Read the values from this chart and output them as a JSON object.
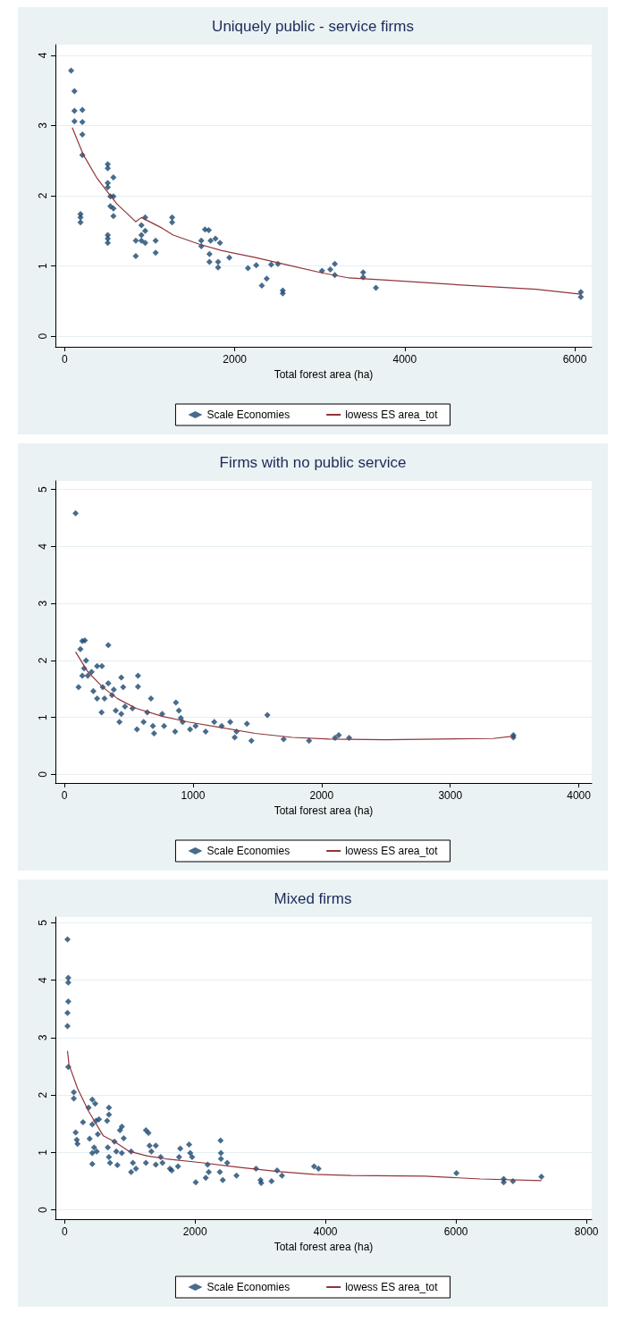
{
  "chart_data": [
    {
      "type": "scatter",
      "title": "Uniquely public - service firms",
      "xlabel": "Total forest area (ha)",
      "xlim": [
        -110,
        6200
      ],
      "ylim": [
        -0.15,
        4.15
      ],
      "xticks": [
        0,
        2000,
        4000,
        6000
      ],
      "yticks": [
        0,
        1,
        2,
        3,
        4
      ],
      "grid": "y",
      "legend": "bottom",
      "series": [
        {
          "name": "Scale Economies",
          "marker": "diamond",
          "color": "#1a476f",
          "x": [
            75,
            114,
            114,
            114,
            207,
            207,
            207,
            207,
            185,
            185,
            185,
            506,
            506,
            506,
            506,
            572,
            537,
            537,
            572,
            572,
            572,
            506,
            506,
            506,
            836,
            836,
            902,
            902,
            902,
            946,
            946,
            946,
            1069,
            1069,
            1263,
            1263,
            1606,
            1606,
            1650,
            1694,
            1716,
            1703,
            1703,
            1773,
            1804,
            1804,
            1826,
            1936,
            2156,
            2253,
            2319,
            2376,
            2429,
            2508,
            2565,
            2565,
            3027,
            3124,
            3177,
            3177,
            3511,
            3511,
            3661,
            6072,
            6072
          ],
          "values": [
            3.78,
            3.49,
            3.21,
            3.06,
            3.22,
            3.05,
            2.87,
            2.58,
            1.74,
            1.69,
            1.62,
            2.45,
            2.39,
            2.18,
            2.12,
            2.26,
            1.99,
            1.85,
            1.99,
            1.82,
            1.71,
            1.44,
            1.39,
            1.33,
            1.36,
            1.14,
            1.58,
            1.44,
            1.36,
            1.69,
            1.5,
            1.33,
            1.36,
            1.19,
            1.69,
            1.62,
            1.36,
            1.28,
            1.52,
            1.51,
            1.36,
            1.17,
            1.06,
            1.39,
            0.98,
            1.06,
            1.33,
            1.12,
            0.97,
            1.01,
            0.72,
            0.82,
            1.02,
            1.03,
            0.65,
            0.61,
            0.93,
            0.95,
            1.03,
            0.87,
            0.91,
            0.84,
            0.69,
            0.63,
            0.56
          ]
        },
        {
          "name": "lowess ES area_tot",
          "type": "line",
          "marker": "none",
          "color": "#90353b",
          "x": [
            88,
            220,
            374,
            506,
            616,
            836,
            902,
            1144,
            1276,
            1584,
            1848,
            2244,
            2640,
            3036,
            3344,
            3784,
            4664,
            5544,
            6072
          ],
          "values": [
            2.97,
            2.58,
            2.26,
            2.05,
            1.88,
            1.63,
            1.69,
            1.54,
            1.44,
            1.31,
            1.22,
            1.12,
            1.01,
            0.9,
            0.83,
            0.8,
            0.73,
            0.67,
            0.6
          ]
        }
      ]
    },
    {
      "type": "scatter",
      "title": "Firms with no public service",
      "xlabel": "Total forest area (ha)",
      "xlim": [
        -70,
        4100
      ],
      "ylim": [
        -0.15,
        5.15
      ],
      "xticks": [
        0,
        1000,
        2000,
        3000,
        4000
      ],
      "yticks": [
        0,
        1,
        2,
        3,
        4,
        5
      ],
      "grid": "y",
      "legend": "bottom",
      "series": [
        {
          "name": "Scale Economies",
          "marker": "diamond",
          "color": "#1a476f",
          "x": [
            87,
            139,
            124,
            159,
            110,
            139,
            153,
            168,
            182,
            211,
            254,
            292,
            225,
            254,
            298,
            312,
            341,
            341,
            370,
            384,
            289,
            399,
            442,
            457,
            428,
            442,
            471,
            529,
            572,
            572,
            564,
            616,
            644,
            673,
            688,
            697,
            760,
            775,
            861,
            867,
            890,
            905,
            919,
            977,
            1020,
            1098,
            1165,
            1223,
            1289,
            1324,
            1338,
            1419,
            1454,
            1578,
            1705,
            1902,
            2104,
            2133,
            2214,
            3491,
            3491
          ],
          "values": [
            4.58,
            2.34,
            2.2,
            2.35,
            1.53,
            1.73,
            1.86,
            2.0,
            1.73,
            1.8,
            1.9,
            1.9,
            1.46,
            1.33,
            1.53,
            1.33,
            1.6,
            2.27,
            1.39,
            1.49,
            1.09,
            1.12,
            1.7,
            1.53,
            0.92,
            1.06,
            1.19,
            1.16,
            1.73,
            1.54,
            0.79,
            0.92,
            1.09,
            1.33,
            0.85,
            0.72,
            1.06,
            0.85,
            0.75,
            1.26,
            1.12,
            0.99,
            0.92,
            0.79,
            0.85,
            0.75,
            0.92,
            0.85,
            0.92,
            0.65,
            0.75,
            0.89,
            0.59,
            1.04,
            0.62,
            0.59,
            0.64,
            0.69,
            0.64,
            0.69,
            0.65
          ]
        },
        {
          "name": "lowess ES area_tot",
          "type": "line",
          "marker": "none",
          "color": "#90353b",
          "x": [
            87,
            182,
            298,
            413,
            558,
            760,
            962,
            1223,
            1483,
            1772,
            2061,
            2494,
            3332,
            3491
          ],
          "values": [
            2.15,
            1.8,
            1.53,
            1.33,
            1.16,
            1.02,
            0.92,
            0.82,
            0.72,
            0.65,
            0.62,
            0.61,
            0.63,
            0.67
          ]
        }
      ]
    },
    {
      "type": "scatter",
      "title": "Mixed firms",
      "xlabel": "Total forest area (ha)",
      "xlim": [
        -140,
        8080
      ],
      "ylim": [
        -0.16,
        5.1
      ],
      "xticks": [
        0,
        2000,
        4000,
        6000,
        8000
      ],
      "yticks": [
        0,
        1,
        2,
        3,
        4,
        5
      ],
      "grid": "y",
      "legend": "bottom",
      "series": [
        {
          "name": "Scale Economies",
          "marker": "diamond",
          "color": "#1a476f",
          "x": [
            45,
            57,
            57,
            57,
            45,
            45,
            57,
            142,
            142,
            170,
            187,
            198,
            283,
            368,
            385,
            425,
            470,
            425,
            482,
            510,
            527,
            425,
            425,
            453,
            493,
            652,
            680,
            680,
            663,
            680,
            697,
            765,
            793,
            810,
            850,
            878,
            907,
            878,
            1020,
            1020,
            1048,
            1094,
            1247,
            1286,
            1247,
            1303,
            1331,
            1399,
            1399,
            1473,
            1501,
            1615,
            1643,
            1756,
            1773,
            1739,
            1909,
            1926,
            1955,
            2011,
            2164,
            2193,
            2210,
            2391,
            2397,
            2397,
            2380,
            2425,
            2493,
            2635,
            2935,
            3003,
            3014,
            3173,
            3258,
            3332,
            3825,
            3893,
            6006,
            6731,
            6731,
            6873,
            7309
          ],
          "values": [
            4.71,
            4.04,
            3.96,
            3.63,
            3.43,
            3.2,
            2.49,
            2.05,
            1.94,
            1.35,
            1.22,
            1.15,
            1.53,
            1.78,
            1.24,
            1.92,
            1.85,
            1.49,
            1.55,
            1.32,
            1.58,
            0.99,
            0.8,
            1.09,
            1.02,
            1.55,
            1.78,
            1.66,
            1.09,
            0.92,
            0.82,
            1.19,
            1.02,
            0.78,
            1.39,
            1.45,
            1.25,
            0.99,
            1.02,
            0.66,
            0.82,
            0.72,
            1.39,
            1.34,
            0.82,
            1.12,
            1.02,
            1.12,
            0.79,
            0.92,
            0.82,
            0.72,
            0.69,
            0.92,
            1.07,
            0.76,
            1.14,
            0.99,
            0.92,
            0.48,
            0.56,
            0.79,
            0.66,
            1.21,
            0.99,
            0.89,
            0.66,
            0.52,
            0.82,
            0.6,
            0.72,
            0.52,
            0.47,
            0.5,
            0.69,
            0.6,
            0.76,
            0.72,
            0.64,
            0.54,
            0.48,
            0.5,
            0.58
          ]
        },
        {
          "name": "lowess ES area_tot",
          "type": "line",
          "marker": "none",
          "color": "#90353b",
          "x": [
            45,
            68,
            198,
            368,
            595,
            765,
            992,
            1275,
            1558,
            2125,
            2691,
            3258,
            3825,
            4391,
            5524,
            6374,
            7309
          ],
          "values": [
            2.77,
            2.53,
            2.12,
            1.72,
            1.29,
            1.19,
            1.02,
            0.94,
            0.89,
            0.82,
            0.74,
            0.67,
            0.62,
            0.6,
            0.59,
            0.54,
            0.51
          ]
        }
      ]
    }
  ]
}
